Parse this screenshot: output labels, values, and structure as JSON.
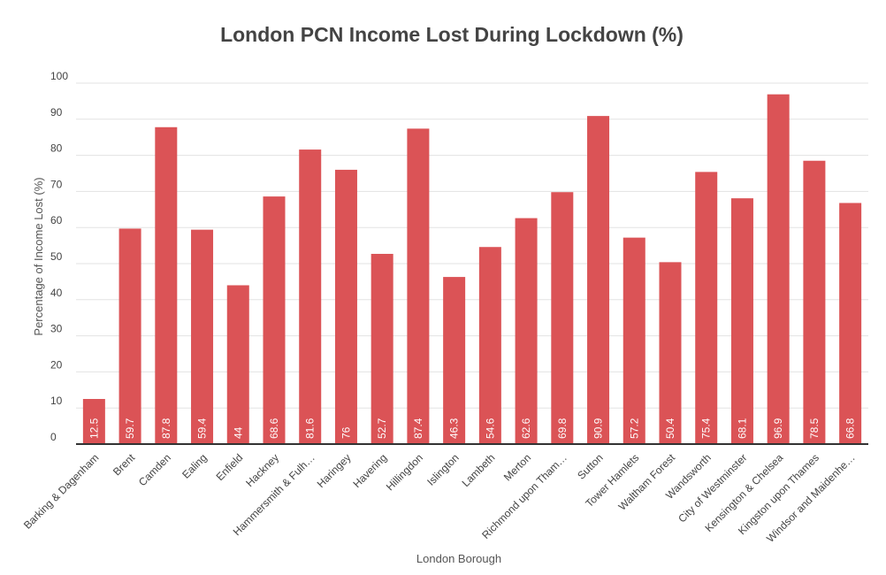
{
  "chart_data": {
    "type": "bar",
    "title": "London PCN Income Lost During Lockdown (%)",
    "xlabel": "London Borough",
    "ylabel": "Percentage of Income Lost (%)",
    "ylim": [
      0,
      100
    ],
    "yticks": [
      0,
      10,
      20,
      30,
      40,
      50,
      60,
      70,
      80,
      90,
      100
    ],
    "grid": true,
    "legend": "none",
    "bar_color": "#db5356",
    "categories": [
      "Barking & Dagenham",
      "Brent",
      "Camden",
      "Ealing",
      "Enfield",
      "Hackney",
      "Hammersmith & Fulh…",
      "Haringey",
      "Havering",
      "Hillingdon",
      "Islington",
      "Lambeth",
      "Merton",
      "Richmond upon Tham…",
      "Sutton",
      "Tower Hamlets",
      "Waltham Forest",
      "Wandsworth",
      "City of Westminster",
      "Kensington & Chelsea",
      "Kingston upon Thames",
      "Windsor and Maidenhe…"
    ],
    "values": [
      12.5,
      59.7,
      87.8,
      59.4,
      44,
      68.6,
      81.6,
      76,
      52.7,
      87.4,
      46.3,
      54.6,
      62.6,
      69.8,
      90.9,
      57.2,
      50.4,
      75.4,
      68.1,
      96.9,
      78.5,
      66.8
    ],
    "data_labels": [
      "12.5",
      "59.7",
      "87.8",
      "59.4",
      "44",
      "68.6",
      "81.6",
      "76",
      "52.7",
      "87.4",
      "46.3",
      "54.6",
      "62.6",
      "69.8",
      "90.9",
      "57.2",
      "50.4",
      "75.4",
      "68.1",
      "96.9",
      "78.5",
      "66.8"
    ]
  }
}
